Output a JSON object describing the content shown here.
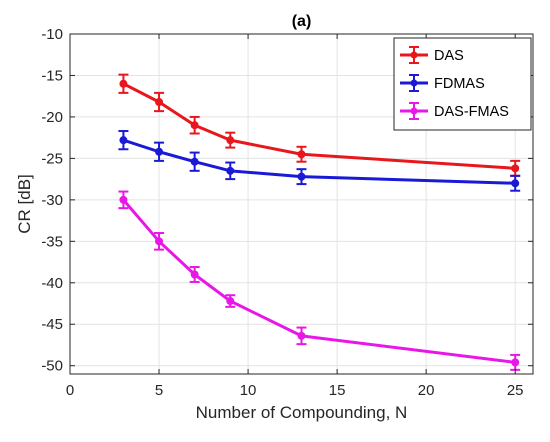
{
  "chart_data": {
    "type": "line",
    "title": "(a)",
    "xlabel": "Number of Compounding, N",
    "ylabel": "CR [dB]",
    "xlim": [
      0,
      26
    ],
    "ylim": [
      -51,
      -10
    ],
    "xticks": [
      0,
      5,
      10,
      15,
      20,
      25
    ],
    "yticks": [
      -10,
      -15,
      -20,
      -25,
      -30,
      -35,
      -40,
      -45,
      -50
    ],
    "grid": true,
    "legend_position": "top-right",
    "x": [
      3,
      5,
      7,
      9,
      13,
      25
    ],
    "series": [
      {
        "name": "DAS",
        "color": "#e8171c",
        "values": [
          -16.0,
          -18.2,
          -21.0,
          -22.8,
          -24.5,
          -26.2
        ],
        "errors": [
          1.1,
          1.1,
          1.0,
          0.9,
          0.9,
          0.9
        ]
      },
      {
        "name": "FDMAS",
        "color": "#1a1ad6",
        "values": [
          -22.8,
          -24.2,
          -25.4,
          -26.5,
          -27.2,
          -28.0
        ],
        "errors": [
          1.1,
          1.1,
          1.1,
          1.0,
          0.9,
          0.9
        ]
      },
      {
        "name": "DAS-FMAS",
        "color": "#e817e8",
        "values": [
          -30.0,
          -35.0,
          -39.0,
          -42.2,
          -46.4,
          -49.6
        ],
        "errors": [
          1.0,
          1.0,
          0.9,
          0.7,
          1.0,
          0.9
        ]
      }
    ]
  }
}
